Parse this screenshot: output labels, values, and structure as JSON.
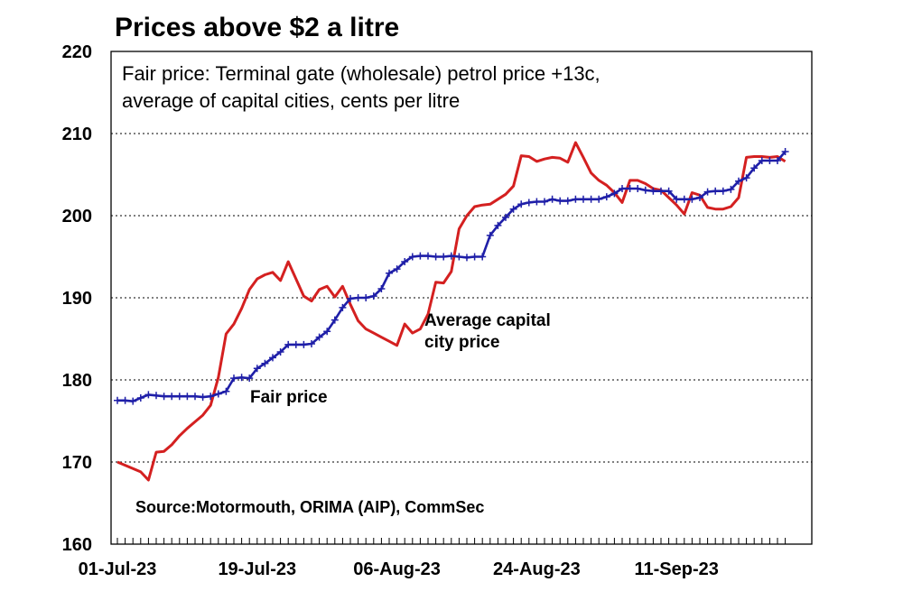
{
  "chart_data": {
    "type": "line",
    "title": "Prices above $2 a litre",
    "note_lines": [
      "Fair price: Terminal gate (wholesale) petrol price +13c,",
      "average of capital cities, cents per litre"
    ],
    "source": "Source:Motormouth,  ORIMA (AIP), CommSec",
    "xlabel": "",
    "ylabel": "",
    "x_start": "01-Jul-23",
    "x_tick_labels": [
      "01-Jul-23",
      "19-Jul-23",
      "06-Aug-23",
      "24-Aug-23",
      "11-Sep-23"
    ],
    "ylim": [
      160,
      220
    ],
    "y_ticks": [
      "160",
      "170",
      "180",
      "190",
      "200",
      "210",
      "220"
    ],
    "grid": true,
    "annotations": [
      {
        "lines": [
          "Average capital",
          "city price"
        ],
        "series": "Average capital city price"
      },
      {
        "lines": [
          "Fair price"
        ],
        "series": "Fair price"
      }
    ],
    "series": [
      {
        "name": "Average capital city price",
        "color": "#d42020",
        "values": [
          170.0,
          169.6,
          169.2,
          168.8,
          167.8,
          171.2,
          171.3,
          172.1,
          173.2,
          174.1,
          174.9,
          175.7,
          176.9,
          180.3,
          185.6,
          186.8,
          188.7,
          191.0,
          192.3,
          192.8,
          193.1,
          192.1,
          194.4,
          192.3,
          190.2,
          189.6,
          191.0,
          191.4,
          190.1,
          191.4,
          189.2,
          187.2,
          186.2,
          185.7,
          185.2,
          184.7,
          184.2,
          186.8,
          185.7,
          186.2,
          188.0,
          191.9,
          191.8,
          193.2,
          198.4,
          200.0,
          201.1,
          201.3,
          201.4,
          202.0,
          202.6,
          203.6,
          207.3,
          207.2,
          206.6,
          206.9,
          207.1,
          207.0,
          206.5,
          208.9,
          207.1,
          205.2,
          204.3,
          203.7,
          202.8,
          201.6,
          204.3,
          204.3,
          203.9,
          203.3,
          203.1,
          202.2,
          201.3,
          200.2,
          202.8,
          202.5,
          201.0,
          200.8,
          200.8,
          201.1,
          202.2,
          207.1,
          207.2,
          207.2,
          207.1,
          207.2,
          206.6
        ]
      },
      {
        "name": "Fair price",
        "color": "#1f1fa8",
        "values": [
          177.5,
          177.5,
          177.4,
          177.8,
          178.2,
          178.1,
          178.0,
          178.0,
          178.0,
          178.0,
          178.0,
          177.9,
          178.0,
          178.3,
          178.6,
          180.2,
          180.3,
          180.2,
          181.4,
          182.0,
          182.7,
          183.4,
          184.3,
          184.3,
          184.3,
          184.4,
          185.2,
          185.9,
          187.3,
          188.8,
          189.9,
          190.0,
          190.0,
          190.2,
          191.1,
          193.0,
          193.5,
          194.4,
          195.0,
          195.1,
          195.1,
          195.0,
          195.0,
          195.1,
          195.0,
          194.9,
          195.0,
          195.0,
          197.6,
          198.8,
          199.8,
          200.8,
          201.4,
          201.6,
          201.7,
          201.7,
          202.0,
          201.8,
          201.8,
          202.0,
          202.0,
          202.0,
          202.0,
          202.3,
          202.7,
          203.3,
          203.3,
          203.3,
          203.1,
          203.0,
          203.0,
          203.0,
          202.0,
          202.0,
          202.0,
          202.2,
          202.9,
          203.0,
          203.0,
          203.2,
          204.2,
          204.6,
          205.8,
          206.7,
          206.7,
          206.7,
          207.8
        ]
      }
    ]
  }
}
